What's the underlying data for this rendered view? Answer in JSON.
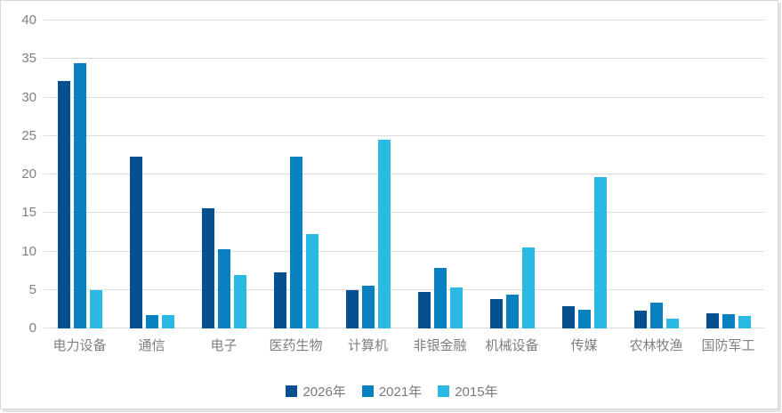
{
  "chart_data": {
    "type": "bar",
    "title": "",
    "categories": [
      "电力设备",
      "通信",
      "电子",
      "医药生物",
      "计算机",
      "非银金融",
      "机械设备",
      "传媒",
      "农林牧渔",
      "国防军工"
    ],
    "series": [
      {
        "name": "2026年",
        "color": "#05508f",
        "values": [
          32.1,
          22.3,
          15.6,
          7.3,
          5.0,
          4.7,
          3.8,
          2.9,
          2.3,
          2.0
        ]
      },
      {
        "name": "2021年",
        "color": "#0981c1",
        "values": [
          34.5,
          1.7,
          10.3,
          22.3,
          5.6,
          7.9,
          4.4,
          2.4,
          3.4,
          1.8
        ]
      },
      {
        "name": "2015年",
        "color": "#29b9e2",
        "values": [
          5.0,
          1.7,
          6.9,
          12.3,
          24.5,
          5.3,
          10.5,
          19.6,
          1.3,
          1.6
        ]
      }
    ],
    "xlabel": "",
    "ylabel": "",
    "ylim": [
      0,
      40
    ],
    "y_ticks": [
      0,
      5,
      10,
      15,
      20,
      25,
      30,
      35,
      40
    ],
    "grid": "horizontal",
    "legend_position": "bottom"
  },
  "colors": {
    "background": "#ffffff",
    "gridline": "#dcdcdc",
    "axis_text": "#808080",
    "category_text": "#7f7f7f",
    "legend_text": "#7a7a7a",
    "card_border": "#d9d9d9"
  }
}
